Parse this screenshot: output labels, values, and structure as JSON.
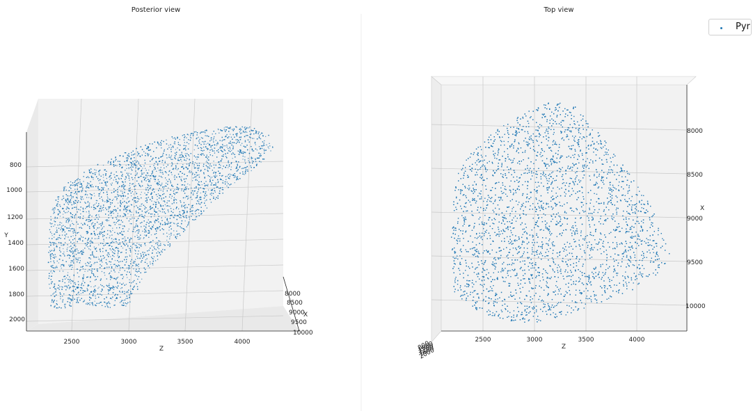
{
  "colors": {
    "series": "#1f77b4",
    "pane": "#f2f2f2",
    "grid": "#c8c8c8"
  },
  "legend": {
    "label": "Pyr"
  },
  "chart_data": [
    {
      "type": "scatter",
      "projection": "3d",
      "title": "Posterior view",
      "xlabel": "Z",
      "ylabel": "Y",
      "zlabel": "X",
      "series": [
        {
          "name": "Pyr",
          "marker": "point",
          "approx_points": 30000
        }
      ],
      "x_ticks": [
        "2500",
        "3000",
        "3500",
        "4000"
      ],
      "y_ticks": [
        "800",
        "1000",
        "1200",
        "1400",
        "1600",
        "1800",
        "2000"
      ],
      "z_ticks": [
        "8000",
        "8500",
        "9000",
        "9500",
        "10000"
      ],
      "xlim": [
        2100,
        4400
      ],
      "ylim": [
        2050,
        650
      ],
      "zlim": [
        7700,
        10250
      ]
    },
    {
      "type": "scatter",
      "projection": "3d",
      "title": "Top view",
      "xlabel": "Z",
      "ylabel": "X",
      "series": [
        {
          "name": "Pyr",
          "marker": "point",
          "approx_points": 30000
        }
      ],
      "x_ticks": [
        "2500",
        "3000",
        "3500",
        "4000"
      ],
      "y_ticks": [
        "8000",
        "8500",
        "9000",
        "9500",
        "10000"
      ],
      "xlim": [
        2100,
        4600
      ],
      "ylim": [
        7700,
        10300
      ]
    }
  ]
}
